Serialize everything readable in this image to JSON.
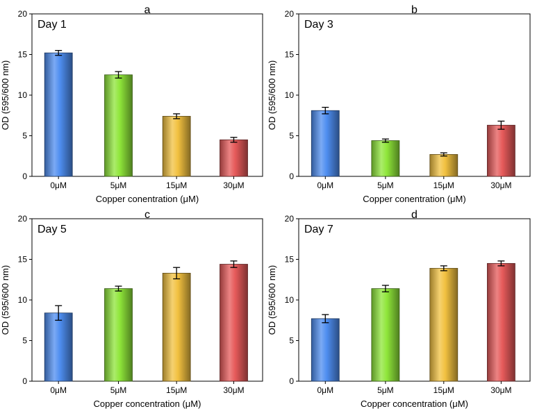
{
  "colors": {
    "bar_0uM": "#4f8ef0",
    "bar_5uM": "#8fe63a",
    "bar_15uM": "#f2c140",
    "bar_30uM": "#e65a5a"
  },
  "chart_data": [
    {
      "type": "bar",
      "panel": "a",
      "day_label": "Day 1",
      "categories": [
        "0μM",
        "5μM",
        "15μM",
        "30μM"
      ],
      "values": [
        15.2,
        12.5,
        7.4,
        4.5
      ],
      "errors": [
        0.3,
        0.4,
        0.3,
        0.3
      ],
      "xlabel": "Copper conentration (μM)",
      "ylabel": "OD (595/600 nm)",
      "ylim": [
        0,
        20
      ],
      "yticks": [
        "0",
        "5",
        "10",
        "15",
        "20"
      ],
      "grid": false
    },
    {
      "type": "bar",
      "panel": "b",
      "day_label": "Day 3",
      "categories": [
        "0μM",
        "5μM",
        "15μM",
        "30μM"
      ],
      "values": [
        8.1,
        4.4,
        2.7,
        6.3
      ],
      "errors": [
        0.4,
        0.2,
        0.2,
        0.5
      ],
      "xlabel": "Copper conentration (μM)",
      "ylabel": "OD (595/600 nm)",
      "ylim": [
        0,
        20
      ],
      "yticks": [
        "0",
        "5",
        "10",
        "15",
        "20"
      ],
      "grid": false
    },
    {
      "type": "bar",
      "panel": "c",
      "day_label": "Day 5",
      "categories": [
        "0μM",
        "5μM",
        "15μM",
        "30μM"
      ],
      "values": [
        8.4,
        11.4,
        13.3,
        14.4
      ],
      "errors": [
        0.9,
        0.3,
        0.7,
        0.4
      ],
      "xlabel": "Copper concentration (μM)",
      "ylabel": "OD (595/600 nm)",
      "ylim": [
        0,
        20
      ],
      "yticks": [
        "0",
        "5",
        "10",
        "15",
        "20"
      ],
      "grid": false
    },
    {
      "type": "bar",
      "panel": "d",
      "day_label": "Day 7",
      "categories": [
        "0μM",
        "5μM",
        "15μM",
        "30μM"
      ],
      "values": [
        7.7,
        11.4,
        13.9,
        14.5
      ],
      "errors": [
        0.5,
        0.4,
        0.3,
        0.3
      ],
      "xlabel": "Copper concentration (μM)",
      "ylabel": "OD (595/600 nm)",
      "ylim": [
        0,
        20
      ],
      "yticks": [
        "0",
        "5",
        "10",
        "15",
        "20"
      ],
      "grid": false
    }
  ]
}
